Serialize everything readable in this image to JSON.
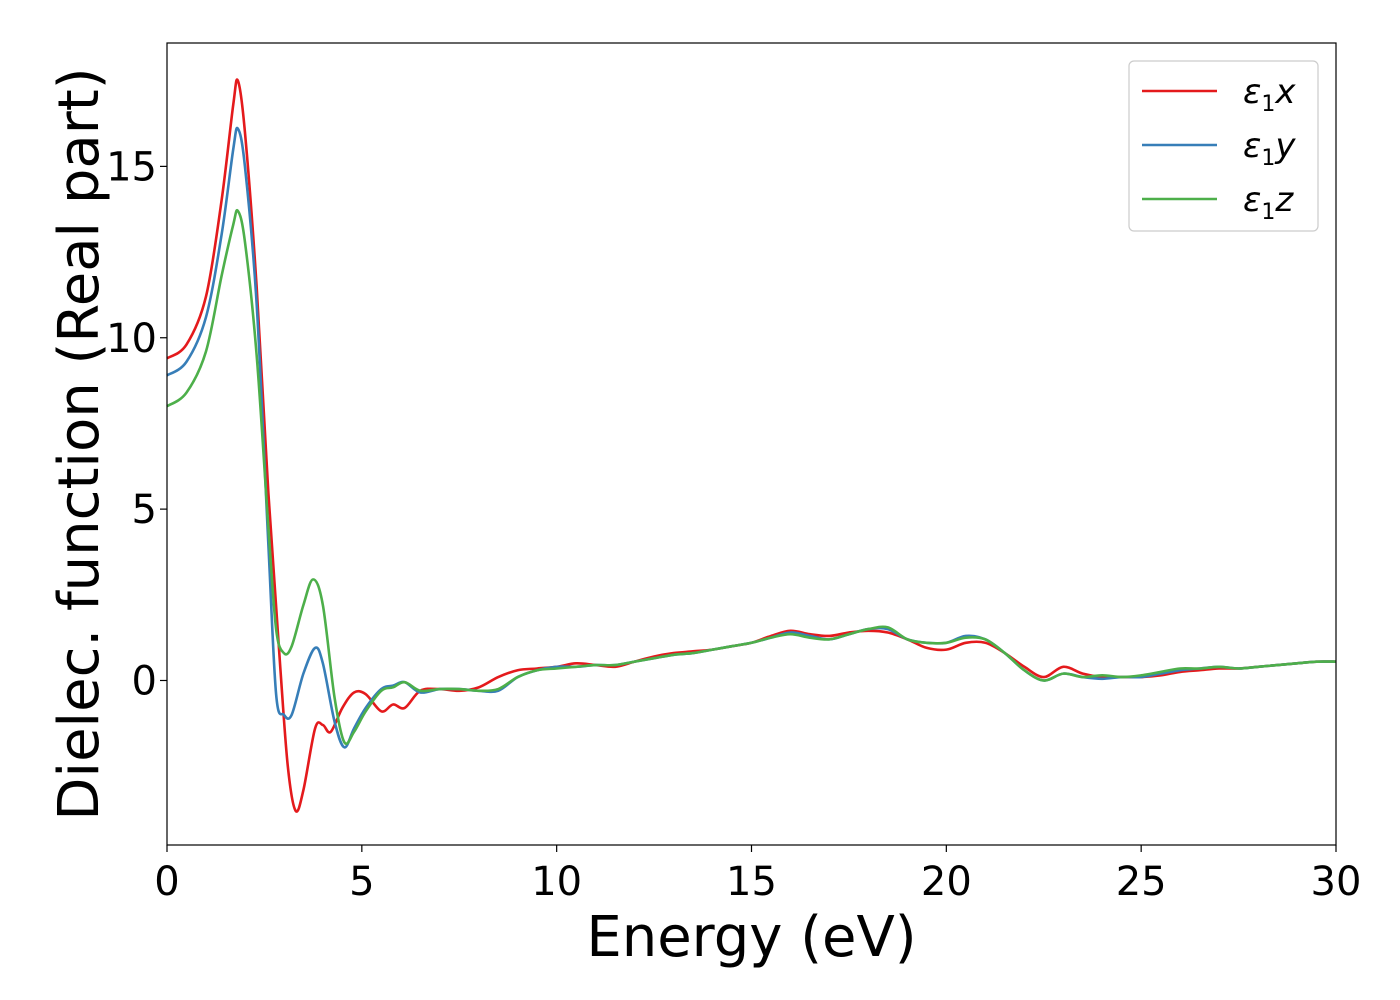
{
  "chart_data": {
    "type": "line",
    "xlabel": "Energy (eV)",
    "ylabel": "Dielec. function (Real part)",
    "xlim": [
      0,
      30
    ],
    "ylim": [
      -4.8,
      18.6
    ],
    "xticks": [
      "0",
      "5",
      "10",
      "15",
      "20",
      "25",
      "30"
    ],
    "yticks": [
      "0",
      "5",
      "10",
      "15"
    ],
    "grid": false,
    "legend_position": "top-right",
    "series": [
      {
        "name": "ε1x",
        "legend": {
          "base": "ε",
          "sub": "1",
          "var": "x"
        },
        "color": "#e41a1c",
        "points": [
          [
            0,
            9.4
          ],
          [
            0.5,
            9.8
          ],
          [
            1.0,
            11.2
          ],
          [
            1.4,
            14.0
          ],
          [
            1.7,
            16.8
          ],
          [
            1.82,
            17.5
          ],
          [
            2.0,
            16.0
          ],
          [
            2.3,
            11.5
          ],
          [
            2.6,
            5.5
          ],
          [
            2.9,
            0.5
          ],
          [
            3.1,
            -2.5
          ],
          [
            3.3,
            -3.8
          ],
          [
            3.5,
            -3.2
          ],
          [
            3.8,
            -1.4
          ],
          [
            4.0,
            -1.3
          ],
          [
            4.2,
            -1.5
          ],
          [
            4.5,
            -0.8
          ],
          [
            4.8,
            -0.35
          ],
          [
            5.1,
            -0.4
          ],
          [
            5.5,
            -0.9
          ],
          [
            5.8,
            -0.7
          ],
          [
            6.1,
            -0.8
          ],
          [
            6.5,
            -0.3
          ],
          [
            7.0,
            -0.25
          ],
          [
            7.5,
            -0.3
          ],
          [
            8.0,
            -0.2
          ],
          [
            8.5,
            0.1
          ],
          [
            9.0,
            0.3
          ],
          [
            9.5,
            0.35
          ],
          [
            10.0,
            0.4
          ],
          [
            10.5,
            0.5
          ],
          [
            11.0,
            0.45
          ],
          [
            11.5,
            0.4
          ],
          [
            12.0,
            0.55
          ],
          [
            12.5,
            0.7
          ],
          [
            13.0,
            0.8
          ],
          [
            13.5,
            0.85
          ],
          [
            14.0,
            0.9
          ],
          [
            14.5,
            1.0
          ],
          [
            15.0,
            1.1
          ],
          [
            15.5,
            1.3
          ],
          [
            16.0,
            1.45
          ],
          [
            16.5,
            1.35
          ],
          [
            17.0,
            1.3
          ],
          [
            17.5,
            1.4
          ],
          [
            18.0,
            1.45
          ],
          [
            18.5,
            1.4
          ],
          [
            19.0,
            1.2
          ],
          [
            19.5,
            0.95
          ],
          [
            20.0,
            0.9
          ],
          [
            20.5,
            1.1
          ],
          [
            21.0,
            1.1
          ],
          [
            21.5,
            0.8
          ],
          [
            22.0,
            0.4
          ],
          [
            22.5,
            0.1
          ],
          [
            23.0,
            0.4
          ],
          [
            23.5,
            0.2
          ],
          [
            24.0,
            0.1
          ],
          [
            24.5,
            0.1
          ],
          [
            25.0,
            0.1
          ],
          [
            25.5,
            0.15
          ],
          [
            26.0,
            0.25
          ],
          [
            26.5,
            0.3
          ],
          [
            27.0,
            0.35
          ],
          [
            27.5,
            0.35
          ],
          [
            28.0,
            0.4
          ],
          [
            28.5,
            0.45
          ],
          [
            29.0,
            0.5
          ],
          [
            29.5,
            0.55
          ],
          [
            30.0,
            0.55
          ]
        ]
      },
      {
        "name": "ε1y",
        "legend": {
          "base": "ε",
          "sub": "1",
          "var": "y"
        },
        "color": "#377eb8",
        "points": [
          [
            0,
            8.9
          ],
          [
            0.5,
            9.3
          ],
          [
            1.0,
            10.6
          ],
          [
            1.4,
            13.0
          ],
          [
            1.7,
            15.5
          ],
          [
            1.82,
            16.1
          ],
          [
            2.0,
            15.0
          ],
          [
            2.3,
            11.0
          ],
          [
            2.6,
            4.0
          ],
          [
            2.8,
            -0.4
          ],
          [
            3.0,
            -1.0
          ],
          [
            3.2,
            -1.0
          ],
          [
            3.5,
            0.2
          ],
          [
            3.8,
            0.95
          ],
          [
            4.0,
            0.5
          ],
          [
            4.3,
            -1.2
          ],
          [
            4.55,
            -1.95
          ],
          [
            4.8,
            -1.4
          ],
          [
            5.1,
            -0.8
          ],
          [
            5.5,
            -0.25
          ],
          [
            5.8,
            -0.15
          ],
          [
            6.1,
            -0.05
          ],
          [
            6.5,
            -0.35
          ],
          [
            7.0,
            -0.25
          ],
          [
            7.5,
            -0.25
          ],
          [
            8.0,
            -0.3
          ],
          [
            8.5,
            -0.3
          ],
          [
            9.0,
            0.1
          ],
          [
            9.5,
            0.3
          ],
          [
            10.0,
            0.4
          ],
          [
            10.5,
            0.4
          ],
          [
            11.0,
            0.45
          ],
          [
            11.5,
            0.45
          ],
          [
            12.0,
            0.55
          ],
          [
            12.5,
            0.65
          ],
          [
            13.0,
            0.75
          ],
          [
            13.5,
            0.8
          ],
          [
            14.0,
            0.9
          ],
          [
            14.5,
            1.0
          ],
          [
            15.0,
            1.1
          ],
          [
            15.5,
            1.25
          ],
          [
            16.0,
            1.4
          ],
          [
            16.5,
            1.3
          ],
          [
            17.0,
            1.2
          ],
          [
            17.5,
            1.35
          ],
          [
            18.0,
            1.5
          ],
          [
            18.5,
            1.5
          ],
          [
            19.0,
            1.2
          ],
          [
            19.5,
            1.1
          ],
          [
            20.0,
            1.1
          ],
          [
            20.5,
            1.3
          ],
          [
            21.0,
            1.2
          ],
          [
            21.5,
            0.8
          ],
          [
            22.0,
            0.3
          ],
          [
            22.5,
            0.0
          ],
          [
            23.0,
            0.2
          ],
          [
            23.5,
            0.1
          ],
          [
            24.0,
            0.05
          ],
          [
            24.5,
            0.1
          ],
          [
            25.0,
            0.1
          ],
          [
            25.5,
            0.2
          ],
          [
            26.0,
            0.3
          ],
          [
            26.5,
            0.35
          ],
          [
            27.0,
            0.4
          ],
          [
            27.5,
            0.35
          ],
          [
            28.0,
            0.4
          ],
          [
            28.5,
            0.45
          ],
          [
            29.0,
            0.5
          ],
          [
            29.5,
            0.55
          ],
          [
            30.0,
            0.55
          ]
        ]
      },
      {
        "name": "ε1z",
        "legend": {
          "base": "ε",
          "sub": "1",
          "var": "z"
        },
        "color": "#4daf4a",
        "points": [
          [
            0,
            8.0
          ],
          [
            0.5,
            8.4
          ],
          [
            1.0,
            9.6
          ],
          [
            1.4,
            11.8
          ],
          [
            1.7,
            13.3
          ],
          [
            1.82,
            13.7
          ],
          [
            2.0,
            12.8
          ],
          [
            2.3,
            9.5
          ],
          [
            2.6,
            4.5
          ],
          [
            2.8,
            1.5
          ],
          [
            3.0,
            0.8
          ],
          [
            3.2,
            1.0
          ],
          [
            3.5,
            2.2
          ],
          [
            3.75,
            2.95
          ],
          [
            4.0,
            2.2
          ],
          [
            4.3,
            -0.5
          ],
          [
            4.55,
            -1.8
          ],
          [
            4.8,
            -1.5
          ],
          [
            5.1,
            -0.9
          ],
          [
            5.5,
            -0.3
          ],
          [
            5.8,
            -0.2
          ],
          [
            6.1,
            -0.05
          ],
          [
            6.5,
            -0.3
          ],
          [
            7.0,
            -0.25
          ],
          [
            7.5,
            -0.25
          ],
          [
            8.0,
            -0.3
          ],
          [
            8.5,
            -0.25
          ],
          [
            9.0,
            0.1
          ],
          [
            9.5,
            0.3
          ],
          [
            10.0,
            0.35
          ],
          [
            10.5,
            0.4
          ],
          [
            11.0,
            0.45
          ],
          [
            11.5,
            0.45
          ],
          [
            12.0,
            0.55
          ],
          [
            12.5,
            0.65
          ],
          [
            13.0,
            0.75
          ],
          [
            13.5,
            0.8
          ],
          [
            14.0,
            0.9
          ],
          [
            14.5,
            1.0
          ],
          [
            15.0,
            1.1
          ],
          [
            15.5,
            1.25
          ],
          [
            16.0,
            1.35
          ],
          [
            16.5,
            1.25
          ],
          [
            17.0,
            1.2
          ],
          [
            17.5,
            1.35
          ],
          [
            18.0,
            1.5
          ],
          [
            18.5,
            1.55
          ],
          [
            19.0,
            1.2
          ],
          [
            19.5,
            1.1
          ],
          [
            20.0,
            1.1
          ],
          [
            20.5,
            1.25
          ],
          [
            21.0,
            1.2
          ],
          [
            21.5,
            0.8
          ],
          [
            22.0,
            0.3
          ],
          [
            22.5,
            0.0
          ],
          [
            23.0,
            0.2
          ],
          [
            23.5,
            0.1
          ],
          [
            24.0,
            0.15
          ],
          [
            24.5,
            0.1
          ],
          [
            25.0,
            0.15
          ],
          [
            25.5,
            0.25
          ],
          [
            26.0,
            0.35
          ],
          [
            26.5,
            0.35
          ],
          [
            27.0,
            0.4
          ],
          [
            27.5,
            0.35
          ],
          [
            28.0,
            0.4
          ],
          [
            28.5,
            0.45
          ],
          [
            29.0,
            0.5
          ],
          [
            29.5,
            0.55
          ],
          [
            30.0,
            0.55
          ]
        ]
      }
    ]
  }
}
